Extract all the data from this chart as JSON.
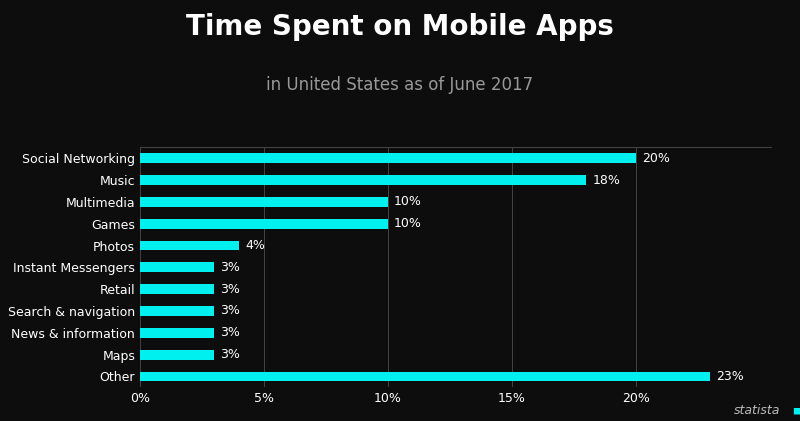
{
  "title": "Time Spent on Mobile Apps",
  "subtitle": "in United States as of June 2017",
  "categories": [
    "Social Networking",
    "Music",
    "Multimedia",
    "Games",
    "Photos",
    "Instant Messengers",
    "Retail",
    "Search & navigation",
    "News & information",
    "Maps",
    "Other"
  ],
  "values": [
    20,
    18,
    10,
    10,
    4,
    3,
    3,
    3,
    3,
    3,
    23
  ],
  "bar_color": "#00EFEF",
  "bg_color": "#0d0d0d",
  "text_color": "#ffffff",
  "subtitle_color": "#999999",
  "grid_color": "#444444",
  "value_label_color": "#ffffff",
  "bar_height": 0.45,
  "xlim": [
    0,
    25.5
  ],
  "xticks": [
    0,
    5,
    10,
    15,
    20
  ],
  "title_fontsize": 20,
  "subtitle_fontsize": 12,
  "tick_label_fontsize": 9,
  "value_fontsize": 9,
  "statista_text": "statista",
  "figsize": [
    8.0,
    4.21
  ],
  "dpi": 100
}
